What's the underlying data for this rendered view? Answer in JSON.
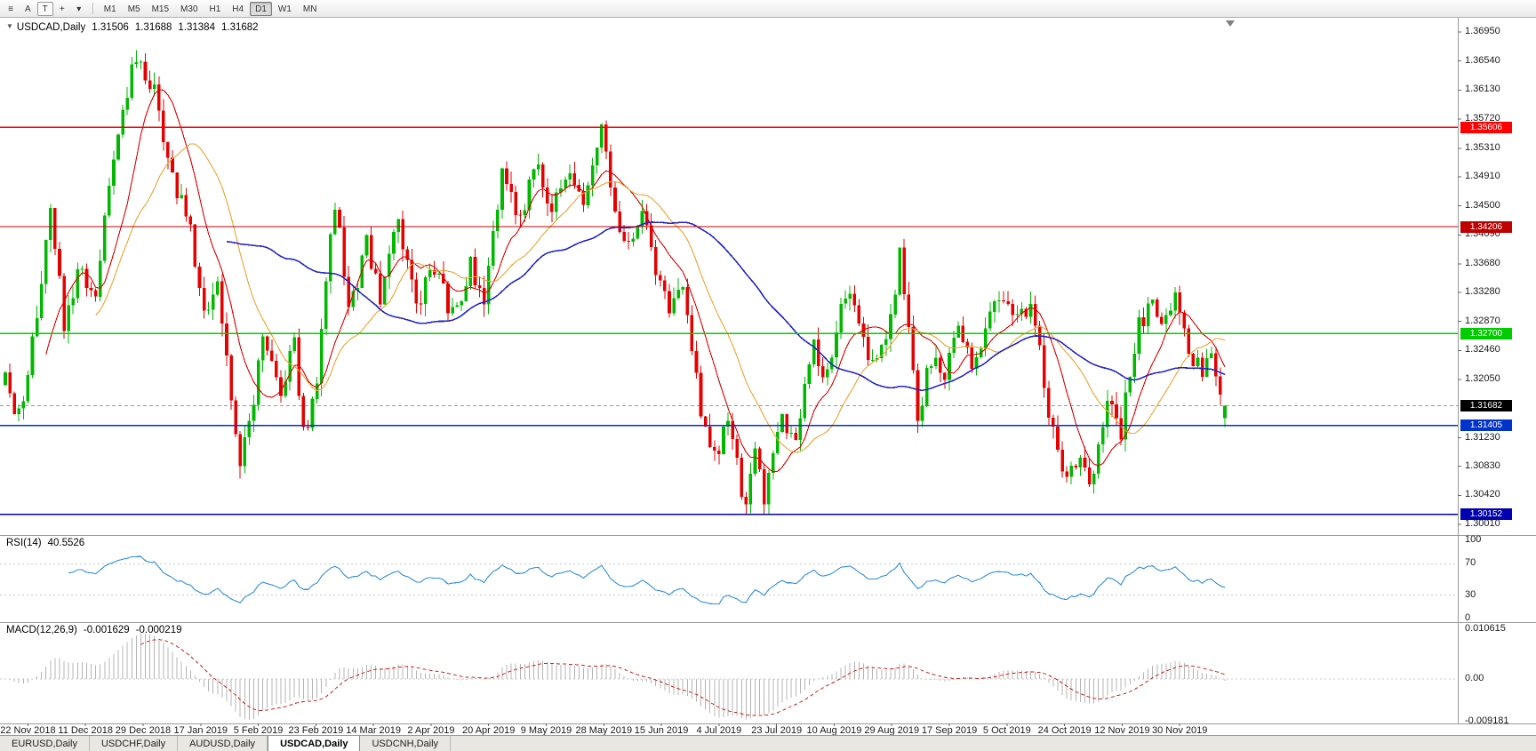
{
  "toolbar": {
    "tools": [
      {
        "name": "menu-icon",
        "glyph": "≡",
        "boxed": false
      },
      {
        "name": "annotate-a-tool",
        "glyph": "A",
        "boxed": false
      },
      {
        "name": "text-tool",
        "glyph": "T",
        "boxed": true
      },
      {
        "name": "crosshair-tool-icon",
        "glyph": "+",
        "boxed": false
      },
      {
        "name": "tools-dropdown-arrow-icon",
        "glyph": "▾",
        "boxed": false
      }
    ],
    "timeframes": [
      "M1",
      "M5",
      "M15",
      "M30",
      "H1",
      "H4",
      "D1",
      "W1",
      "MN"
    ],
    "active_timeframe": "D1"
  },
  "chart": {
    "marker_glyph": "▼",
    "symbol_label": "USDCAD,Daily",
    "ohlc": {
      "open": "1.31506",
      "high": "1.31688",
      "low": "1.31384",
      "close": "1.31682"
    },
    "axis_labels": [
      "1.36950",
      "1.36540",
      "1.36130",
      "1.35720",
      "1.35310",
      "1.34910",
      "1.34500",
      "1.34090",
      "1.33680",
      "1.33280",
      "1.32870",
      "1.32460",
      "1.32050",
      "1.31230",
      "1.30830",
      "1.30420",
      "1.30010"
    ]
  },
  "rsi": {
    "name": "RSI(14)",
    "value": "40.5526",
    "levels": [
      "100",
      "70",
      "30",
      "0"
    ]
  },
  "macd": {
    "name": "MACD(12,26,9)",
    "value": "-0.001629",
    "signal_value": "-0.000219",
    "levels": [
      "0.010615",
      "0.00",
      "-0.009181"
    ]
  },
  "tabs": [
    {
      "label": "EURUSD,Daily",
      "active": false
    },
    {
      "label": "USDCHF,Daily",
      "active": false
    },
    {
      "label": "AUDUSD,Daily",
      "active": false
    },
    {
      "label": "USDCAD,Daily",
      "active": true
    },
    {
      "label": "USDCNH,Daily",
      "active": false
    }
  ],
  "chart_data": {
    "type": "candlestick",
    "symbol": "USDCAD",
    "timeframe": "Daily",
    "bars": 271,
    "last_close": 1.31682,
    "price_range": [
      1.3001,
      1.3695
    ],
    "colors": {
      "up": "#00b800",
      "down": "#e60000",
      "rsi_line": "#2f8fe0",
      "macd_histogram": "#b4b4b4",
      "macd_signal": "#d42020",
      "current_price_line": "#9a9a9a"
    },
    "moving_averages": [
      {
        "period": 10,
        "color": "#e00000",
        "width": 1.1
      },
      {
        "period": 21,
        "color": "#efa32f",
        "width": 1.1
      },
      {
        "period": 50,
        "color": "#2626c8",
        "width": 1.6
      }
    ],
    "horizontal_lines": [
      {
        "price": "1.35606",
        "value": 1.35606,
        "color": "#ff0000"
      },
      {
        "price": "1.34206",
        "value": 1.34206,
        "color": "#c00000"
      },
      {
        "price": "1.32700",
        "value": 1.327,
        "color": "#00cc00"
      },
      {
        "price": "1.31405",
        "value": 1.31405,
        "color": "#0033cc"
      },
      {
        "price": "1.30152",
        "value": 1.30152,
        "color": "#0000b0"
      }
    ],
    "current_price_tag": {
      "price": "1.31682",
      "value": 1.31682,
      "bg": "#000000"
    },
    "rsi": {
      "period": 14,
      "current": 40.5526,
      "level_values": [
        100,
        70,
        30,
        0
      ],
      "dashed_levels": [
        70,
        30
      ]
    },
    "macd": {
      "fast": 12,
      "slow": 26,
      "signal": 9,
      "current": -0.001629,
      "current_signal": -0.000219,
      "scale_top": 0.010615,
      "scale_bottom": -0.009181
    },
    "x_labels": [
      "22 Nov 2018",
      "11 Dec 2018",
      "29 Dec 2018",
      "17 Jan 2019",
      "5 Feb 2019",
      "23 Feb 2019",
      "14 Mar 2019",
      "2 Apr 2019",
      "20 Apr 2019",
      "9 May 2019",
      "28 May 2019",
      "15 Jun 2019",
      "4 Jul 2019",
      "23 Jul 2019",
      "10 Aug 2019",
      "29 Aug 2019",
      "17 Sep 2019",
      "5 Oct 2019",
      "24 Oct 2019",
      "12 Nov 2019",
      "30 Nov 2019"
    ],
    "swing_anchors": [
      [
        0,
        1.3215
      ],
      [
        3,
        1.315
      ],
      [
        6,
        1.326
      ],
      [
        10,
        1.3445
      ],
      [
        13,
        1.3285
      ],
      [
        17,
        1.3365
      ],
      [
        20,
        1.332
      ],
      [
        24,
        1.353
      ],
      [
        29,
        1.366
      ],
      [
        33,
        1.362
      ],
      [
        36,
        1.3505
      ],
      [
        40,
        1.3445
      ],
      [
        44,
        1.3305
      ],
      [
        47,
        1.334
      ],
      [
        52,
        1.308
      ],
      [
        57,
        1.3255
      ],
      [
        61,
        1.3185
      ],
      [
        64,
        1.3265
      ],
      [
        66,
        1.3125
      ],
      [
        69,
        1.3205
      ],
      [
        73,
        1.346
      ],
      [
        76,
        1.3305
      ],
      [
        80,
        1.3395
      ],
      [
        83,
        1.3315
      ],
      [
        87,
        1.3425
      ],
      [
        91,
        1.3315
      ],
      [
        95,
        1.3365
      ],
      [
        99,
        1.3295
      ],
      [
        103,
        1.3365
      ],
      [
        106,
        1.3315
      ],
      [
        110,
        1.349
      ],
      [
        114,
        1.3435
      ],
      [
        118,
        1.3515
      ],
      [
        121,
        1.3445
      ],
      [
        125,
        1.3505
      ],
      [
        128,
        1.3455
      ],
      [
        132,
        1.356
      ],
      [
        134,
        1.348
      ],
      [
        137,
        1.3395
      ],
      [
        141,
        1.3435
      ],
      [
        144,
        1.3355
      ],
      [
        147,
        1.3295
      ],
      [
        150,
        1.3335
      ],
      [
        154,
        1.3155
      ],
      [
        157,
        1.3095
      ],
      [
        160,
        1.3145
      ],
      [
        164,
        1.3022
      ],
      [
        166,
        1.3105
      ],
      [
        168,
        1.3045
      ],
      [
        172,
        1.3155
      ],
      [
        175,
        1.3115
      ],
      [
        179,
        1.3255
      ],
      [
        182,
        1.3205
      ],
      [
        186,
        1.333
      ],
      [
        189,
        1.3285
      ],
      [
        192,
        1.3225
      ],
      [
        196,
        1.3295
      ],
      [
        198,
        1.3385
      ],
      [
        202,
        1.3155
      ],
      [
        205,
        1.3235
      ],
      [
        208,
        1.3195
      ],
      [
        211,
        1.329
      ],
      [
        214,
        1.3235
      ],
      [
        218,
        1.329
      ],
      [
        221,
        1.333
      ],
      [
        224,
        1.3285
      ],
      [
        227,
        1.332
      ],
      [
        231,
        1.3155
      ],
      [
        235,
        1.306
      ],
      [
        238,
        1.3095
      ],
      [
        240,
        1.3055
      ],
      [
        244,
        1.317
      ],
      [
        247,
        1.3135
      ],
      [
        251,
        1.328
      ],
      [
        254,
        1.332
      ],
      [
        257,
        1.3285
      ],
      [
        259,
        1.333
      ],
      [
        262,
        1.3255
      ],
      [
        265,
        1.3205
      ],
      [
        267,
        1.3235
      ],
      [
        270,
        1.31682
      ]
    ]
  }
}
